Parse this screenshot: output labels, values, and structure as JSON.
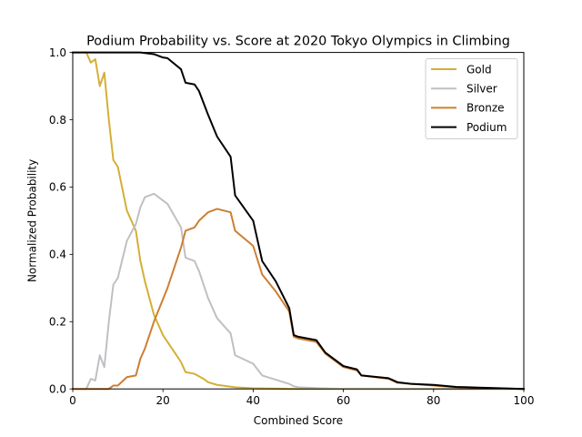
{
  "chart_data": {
    "type": "line",
    "title": "Podium Probability vs. Score at 2020 Tokyo Olympics in Climbing",
    "xlabel": "Combined Score",
    "ylabel": "Normalized Probability",
    "xlim": [
      0,
      100
    ],
    "ylim": [
      0,
      1.0
    ],
    "xticks": [
      0,
      20,
      40,
      60,
      80,
      100
    ],
    "xtick_labels": [
      "0",
      "20",
      "40",
      "60",
      "80",
      "100"
    ],
    "yticks": [
      0.0,
      0.2,
      0.4,
      0.6,
      0.8,
      1.0
    ],
    "ytick_labels": [
      "0.0",
      "0.2",
      "0.4",
      "0.6",
      "0.8",
      "1.0"
    ],
    "grid": false,
    "legend_position": "top-right",
    "series": [
      {
        "name": "Gold",
        "color": "#d4af37",
        "points": [
          [
            0,
            1.0
          ],
          [
            3,
            1.0
          ],
          [
            4,
            0.97
          ],
          [
            5,
            0.98
          ],
          [
            6,
            0.9
          ],
          [
            7,
            0.94
          ],
          [
            8,
            0.8
          ],
          [
            9,
            0.68
          ],
          [
            10,
            0.66
          ],
          [
            12,
            0.53
          ],
          [
            14,
            0.47
          ],
          [
            15,
            0.38
          ],
          [
            16,
            0.32
          ],
          [
            18,
            0.22
          ],
          [
            20,
            0.16
          ],
          [
            22,
            0.12
          ],
          [
            24,
            0.08
          ],
          [
            25,
            0.05
          ],
          [
            27,
            0.045
          ],
          [
            29,
            0.03
          ],
          [
            30,
            0.02
          ],
          [
            32,
            0.012
          ],
          [
            36,
            0.005
          ],
          [
            40,
            0.002
          ],
          [
            50,
            0.0
          ],
          [
            100,
            0.0
          ]
        ]
      },
      {
        "name": "Silver",
        "color": "#c0c0c4",
        "points": [
          [
            0,
            0.0
          ],
          [
            3,
            0.0
          ],
          [
            4,
            0.03
          ],
          [
            5,
            0.025
          ],
          [
            6,
            0.1
          ],
          [
            7,
            0.065
          ],
          [
            8,
            0.2
          ],
          [
            9,
            0.31
          ],
          [
            10,
            0.33
          ],
          [
            12,
            0.44
          ],
          [
            14,
            0.49
          ],
          [
            15,
            0.54
          ],
          [
            16,
            0.57
          ],
          [
            18,
            0.58
          ],
          [
            21,
            0.55
          ],
          [
            24,
            0.48
          ],
          [
            25,
            0.39
          ],
          [
            27,
            0.38
          ],
          [
            28,
            0.35
          ],
          [
            30,
            0.27
          ],
          [
            32,
            0.21
          ],
          [
            35,
            0.165
          ],
          [
            36,
            0.1
          ],
          [
            40,
            0.075
          ],
          [
            42,
            0.04
          ],
          [
            48,
            0.015
          ],
          [
            49,
            0.008
          ],
          [
            50,
            0.005
          ],
          [
            55,
            0.002
          ],
          [
            60,
            0.0
          ],
          [
            100,
            0.0
          ]
        ]
      },
      {
        "name": "Bronze",
        "color": "#cd7f32",
        "points": [
          [
            0,
            0.0
          ],
          [
            8,
            0.0
          ],
          [
            9,
            0.01
          ],
          [
            10,
            0.01
          ],
          [
            12,
            0.035
          ],
          [
            14,
            0.04
          ],
          [
            15,
            0.09
          ],
          [
            16,
            0.12
          ],
          [
            18,
            0.2
          ],
          [
            21,
            0.3
          ],
          [
            24,
            0.42
          ],
          [
            25,
            0.47
          ],
          [
            27,
            0.48
          ],
          [
            28,
            0.5
          ],
          [
            30,
            0.525
          ],
          [
            32,
            0.535
          ],
          [
            35,
            0.525
          ],
          [
            36,
            0.47
          ],
          [
            40,
            0.425
          ],
          [
            42,
            0.34
          ],
          [
            45,
            0.29
          ],
          [
            48,
            0.23
          ],
          [
            49,
            0.155
          ],
          [
            50,
            0.15
          ],
          [
            54,
            0.14
          ],
          [
            56,
            0.105
          ],
          [
            60,
            0.065
          ],
          [
            63,
            0.055
          ],
          [
            64,
            0.04
          ],
          [
            70,
            0.03
          ],
          [
            72,
            0.018
          ],
          [
            75,
            0.015
          ],
          [
            80,
            0.01
          ],
          [
            85,
            0.005
          ],
          [
            90,
            0.003
          ],
          [
            100,
            0.0
          ]
        ]
      },
      {
        "name": "Podium",
        "color": "#000000",
        "points": [
          [
            0,
            1.0
          ],
          [
            15,
            1.0
          ],
          [
            18,
            0.995
          ],
          [
            20,
            0.985
          ],
          [
            21,
            0.983
          ],
          [
            24,
            0.95
          ],
          [
            25,
            0.91
          ],
          [
            27,
            0.905
          ],
          [
            28,
            0.885
          ],
          [
            30,
            0.815
          ],
          [
            32,
            0.75
          ],
          [
            35,
            0.69
          ],
          [
            36,
            0.575
          ],
          [
            40,
            0.5
          ],
          [
            42,
            0.38
          ],
          [
            45,
            0.32
          ],
          [
            48,
            0.24
          ],
          [
            49,
            0.16
          ],
          [
            50,
            0.155
          ],
          [
            54,
            0.145
          ],
          [
            56,
            0.108
          ],
          [
            60,
            0.068
          ],
          [
            63,
            0.058
          ],
          [
            64,
            0.04
          ],
          [
            70,
            0.032
          ],
          [
            72,
            0.02
          ],
          [
            75,
            0.015
          ],
          [
            80,
            0.012
          ],
          [
            85,
            0.006
          ],
          [
            90,
            0.004
          ],
          [
            100,
            0.0
          ]
        ]
      }
    ]
  }
}
